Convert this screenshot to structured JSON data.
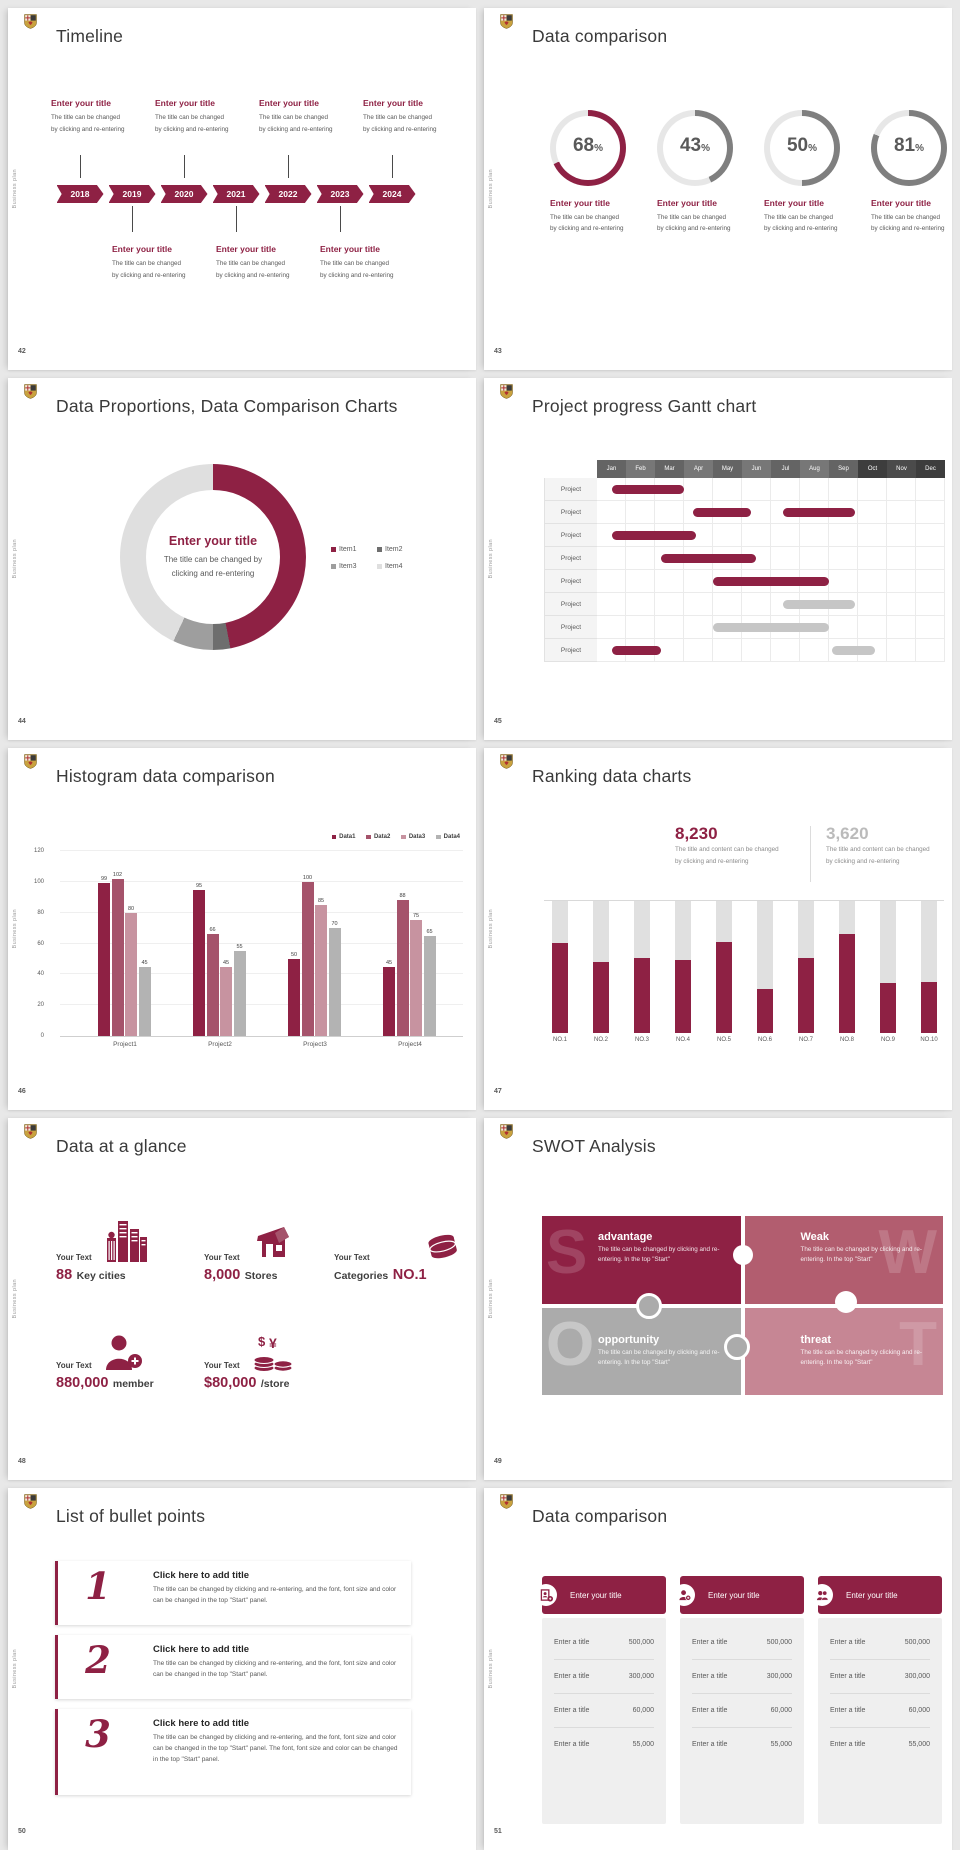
{
  "page": {
    "background": "#E8E8E8"
  },
  "theme": {
    "primary": "#8E2144",
    "rose": "#B25D6F",
    "pink": "#C793A0",
    "gray": "#ABABAB",
    "track": "#E7E7E7"
  },
  "shared": {
    "vertical_label": "Business plan",
    "enter_title": "Enter your title",
    "changed_l1": "The title can be changed",
    "changed_l2": "by clicking and re-entering",
    "donut_l1": "The title can be changed by",
    "donut_l2": "clicking and re-entering",
    "rank_l1": "The title and content can be changed",
    "rank_l2": "by clicking and re-entering",
    "swot_body": "The title can be changed by clicking and re-entering. In the top \"Start\"",
    "bullet_title": "Click here to add title",
    "bullet_body": "The title can be changed by clicking and re-entering, and the font, font size and color can be changed in the top \"Start\" panel.",
    "bullet_body_long": "The title can be changed by clicking and re-entering, and the font, font size and color can be changed in the top \"Start\" panel. The font, font size and color can be changed in the top \"Start\" panel.",
    "enter_a_title": "Enter a title",
    "percent": "%"
  },
  "slides": {
    "s42": {
      "num": "42",
      "title": "Timeline",
      "years": [
        "2018",
        "2019",
        "2020",
        "2021",
        "2022",
        "2023",
        "2024"
      ]
    },
    "s43": {
      "num": "43",
      "title": "Data comparison",
      "rings": [
        "68",
        "43",
        "50",
        "81"
      ]
    },
    "s44": {
      "num": "44",
      "title": "Data Proportions, Data Comparison Charts",
      "legend": [
        "Item1",
        "Item2",
        "Item3",
        "Item4"
      ]
    },
    "s45": {
      "num": "45",
      "title": "Project progress Gantt chart"
    },
    "s46": {
      "num": "46",
      "title": "Histogram data comparison"
    },
    "s47": {
      "num": "47",
      "title": "Ranking data charts",
      "stat_primary": "8,230",
      "stat_secondary": "3,620"
    },
    "s48": {
      "num": "48",
      "title": "Data at a glance",
      "your_text": "Your Text",
      "stats": [
        {
          "num": "88",
          "label": "Key cities"
        },
        {
          "num": "8,000",
          "label": "Stores"
        },
        {
          "pre": "Categories",
          "num": "NO.1",
          "label": ""
        },
        {
          "num": "880,000",
          "label": "member"
        },
        {
          "num": "$80,000",
          "label": "/store"
        }
      ]
    },
    "s49": {
      "num": "49",
      "title": "SWOT Analysis",
      "tiles": [
        {
          "letter": "S",
          "head": "advantage"
        },
        {
          "letter": "W",
          "head": "Weak"
        },
        {
          "letter": "O",
          "head": "opportunity"
        },
        {
          "letter": "T",
          "head": "threat"
        }
      ]
    },
    "s50": {
      "num": "50",
      "title": "List of bullet points",
      "numbers": [
        "1",
        "2",
        "3"
      ]
    },
    "s51": {
      "num": "51",
      "title": "Data comparison",
      "values": [
        "500,000",
        "300,000",
        "60,000",
        "55,000"
      ]
    }
  },
  "chart_data": [
    {
      "id": "rings-43",
      "type": "donut-rings",
      "title": "Data comparison",
      "values": [
        68,
        43,
        50,
        81
      ],
      "unit": "%",
      "colors": [
        "#8E2144",
        "#7F7F7F",
        "#7F7F7F",
        "#7F7F7F"
      ],
      "track": "#E7E7E7"
    },
    {
      "id": "pie-44",
      "type": "pie",
      "title": "Data Proportions, Data Comparison Charts",
      "center_title": "Enter your title",
      "segments": [
        {
          "name": "Item1",
          "pct": 47,
          "color": "#8E2144"
        },
        {
          "name": "Item2",
          "pct": 3,
          "color": "#6E6E6E"
        },
        {
          "name": "Item3",
          "pct": 7,
          "color": "#9E9E9E"
        },
        {
          "name": "Item4",
          "pct": 43,
          "color": "#DFDFDF"
        }
      ]
    },
    {
      "id": "gantt-45",
      "type": "gantt",
      "title": "Project progress Gantt chart",
      "months": [
        "Jan",
        "Feb",
        "Mar",
        "Apr",
        "May",
        "Jun",
        "Jul",
        "Aug",
        "Sep",
        "Oct",
        "Nov",
        "Dec"
      ],
      "rows": [
        {
          "label": "Project",
          "bars": [
            {
              "start": 0.5,
              "end": 3.0,
              "color": "red"
            }
          ]
        },
        {
          "label": "Project",
          "bars": [
            {
              "start": 3.3,
              "end": 5.3,
              "color": "red"
            },
            {
              "start": 6.4,
              "end": 8.9,
              "color": "red"
            }
          ]
        },
        {
          "label": "Project",
          "bars": [
            {
              "start": 0.5,
              "end": 3.4,
              "color": "red"
            }
          ]
        },
        {
          "label": "Project",
          "bars": [
            {
              "start": 2.2,
              "end": 5.5,
              "color": "red"
            }
          ]
        },
        {
          "label": "Project",
          "bars": [
            {
              "start": 4.0,
              "end": 8.0,
              "color": "red"
            }
          ]
        },
        {
          "label": "Project",
          "bars": [
            {
              "start": 6.4,
              "end": 8.9,
              "color": "gray"
            }
          ]
        },
        {
          "label": "Project",
          "bars": [
            {
              "start": 4.0,
              "end": 8.0,
              "color": "gray"
            }
          ]
        },
        {
          "label": "Project",
          "bars": [
            {
              "start": 0.5,
              "end": 2.2,
              "color": "red"
            },
            {
              "start": 8.1,
              "end": 9.6,
              "color": "gray"
            }
          ]
        }
      ]
    },
    {
      "id": "hist-46",
      "type": "bar",
      "title": "Histogram data comparison",
      "categories": [
        "Project1",
        "Project2",
        "Project3",
        "Project4"
      ],
      "series": [
        {
          "name": "Data1",
          "values": [
            99,
            95,
            50,
            45
          ]
        },
        {
          "name": "Data2",
          "values": [
            102,
            66,
            100,
            88
          ]
        },
        {
          "name": "Data3",
          "values": [
            80,
            45,
            85,
            75
          ]
        },
        {
          "name": "Data4",
          "values": [
            45,
            55,
            70,
            65
          ]
        }
      ],
      "colors": [
        "#8E2144",
        "#A5536B",
        "#C793A0",
        "#B3B3B3"
      ],
      "ylim": [
        0,
        120
      ],
      "yticks": [
        0,
        20,
        40,
        60,
        80,
        100,
        120
      ],
      "legend_position": "top-right",
      "grid": true
    },
    {
      "id": "rank-47",
      "type": "bar",
      "title": "Ranking data charts",
      "categories": [
        "NO.1",
        "NO.2",
        "NO.3",
        "NO.4",
        "NO.5",
        "NO.6",
        "NO.7",
        "NO.8",
        "NO.9",
        "NO.10"
      ],
      "values_pct_of_max": [
        68,
        54,
        57,
        55,
        69,
        33,
        57,
        75,
        38,
        39
      ],
      "highlight_value": "8,230",
      "secondary_value": "3,620",
      "bar_color": "#8E2144",
      "track_color": "#E0E0E0"
    }
  ]
}
